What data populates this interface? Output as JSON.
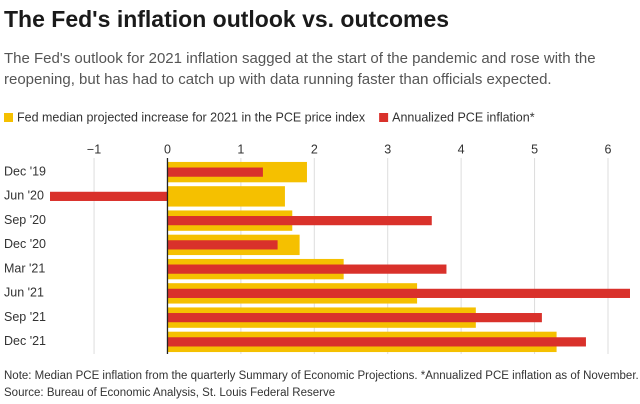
{
  "chart_data": {
    "type": "bar",
    "title": "The Fed's inflation outlook vs. outcomes",
    "subtitle": "The Fed's outlook for 2021 inflation sagged at the start of the pandemic and rose with the reopening, but has had to catch up with data running faster than officials expected.",
    "categories": [
      "Dec '19",
      "Jun '20",
      "Sep '20",
      "Dec '20",
      "Mar '21",
      "Jun '21",
      "Sep '21",
      "Dec '21"
    ],
    "series": [
      {
        "name": "Fed median projected increase for 2021 in the PCE price index",
        "color": "#f5c000",
        "values": [
          1.9,
          1.6,
          1.7,
          1.8,
          2.4,
          3.4,
          4.2,
          5.3
        ]
      },
      {
        "name": "Annualized PCE inflation*",
        "color": "#d9312b",
        "values": [
          1.3,
          -1.6,
          3.6,
          1.5,
          3.8,
          6.3,
          5.1,
          5.7
        ]
      }
    ],
    "xlim": [
      -1.6,
      6.3
    ],
    "xticks": [
      {
        "value": -1,
        "label": "−1"
      },
      0,
      1,
      2,
      3,
      4,
      5,
      6
    ],
    "grid": true,
    "note": "Note: Median PCE inflation from the quarterly Summary of Economic Projections. *Annualized PCE inflation as of November.",
    "source": "Source: Bureau of Economic Analysis, St. Louis Federal Reserve"
  }
}
